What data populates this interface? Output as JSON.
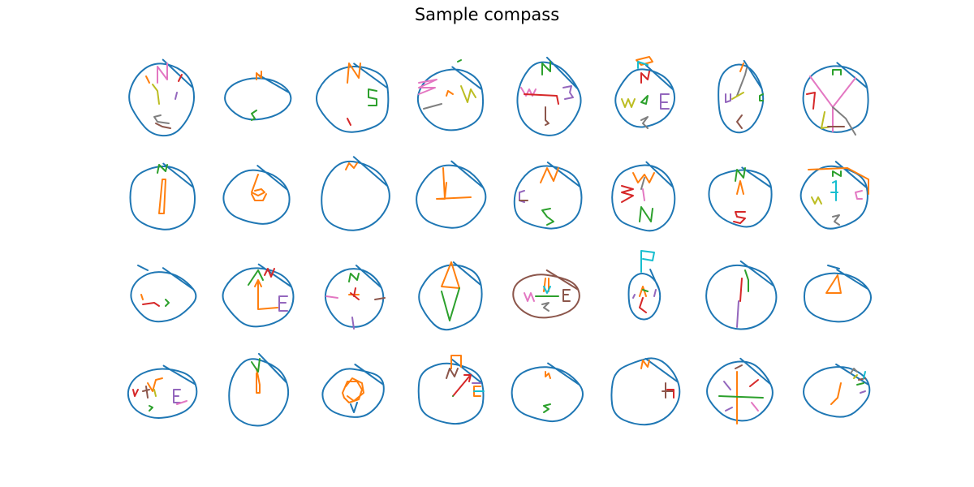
{
  "title": "Sample compass",
  "grid": {
    "rows": 4,
    "cols": 8
  },
  "palette": {
    "outline": "#1f77b4",
    "orange": "#ff7f0e",
    "green": "#2ca02c",
    "red": "#d62728",
    "purple": "#9467bd",
    "brown": "#8c564b",
    "pink": "#e377c2",
    "gray": "#7f7f7f",
    "olive": "#bcbd22",
    "cyan": "#17becf"
  }
}
